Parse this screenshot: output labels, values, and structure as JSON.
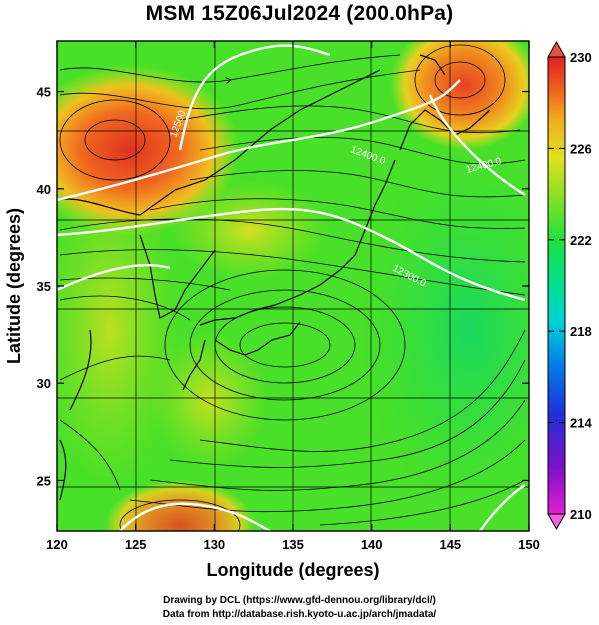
{
  "title": "MSM 15Z06Jul2024 (200.0hPa)",
  "x_axis": {
    "label": "Longitude (degrees)",
    "ticks": [
      120,
      125,
      130,
      135,
      140,
      145,
      150
    ],
    "range": [
      120,
      150
    ]
  },
  "y_axis": {
    "label": "Latitude  (degrees)",
    "ticks": [
      25,
      30,
      35,
      40,
      45
    ],
    "range": [
      22.4,
      47.6
    ]
  },
  "colorbar": {
    "ticks": [
      210,
      214,
      218,
      222,
      226,
      230
    ],
    "min": 210,
    "max": 230,
    "colors": [
      "#e020d0",
      "#8000c8",
      "#2030d8",
      "#0090e8",
      "#00d8d8",
      "#00e090",
      "#20e040",
      "#a0e020",
      "#e0e020",
      "#f0b020",
      "#f06020",
      "#e02020"
    ]
  },
  "contours": {
    "labels": [
      "12500",
      "12400.0",
      "12400.0",
      "12300.0"
    ]
  },
  "credits": [
    "Drawing by DCL (https://www.gfd-dennou.org/library/dcl/)",
    "Data from http://database.rish.kyoto-u.ac.jp/arch/jmadata/"
  ]
}
